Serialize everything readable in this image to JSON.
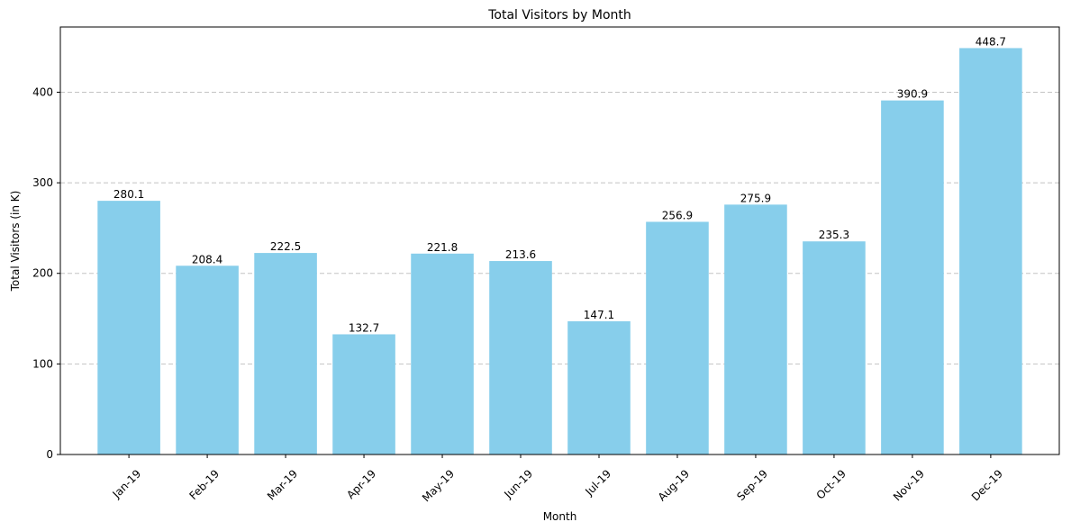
{
  "chart_data": {
    "type": "bar",
    "title": "Total Visitors by Month",
    "xlabel": "Month",
    "ylabel": "Total Visitors (in K)",
    "categories": [
      "Jan-19",
      "Feb-19",
      "Mar-19",
      "Apr-19",
      "May-19",
      "Jun-19",
      "Jul-19",
      "Aug-19",
      "Sep-19",
      "Oct-19",
      "Nov-19",
      "Dec-19"
    ],
    "values": [
      280.1,
      208.4,
      222.5,
      132.7,
      221.8,
      213.6,
      147.1,
      256.9,
      275.9,
      235.3,
      390.9,
      448.7
    ],
    "data_labels": [
      "280.1",
      "208.4",
      "222.5",
      "132.7",
      "221.8",
      "213.6",
      "147.1",
      "256.9",
      "275.9",
      "235.3",
      "390.9",
      "448.7"
    ],
    "ylim": [
      0,
      472
    ],
    "yticks": [
      0,
      100,
      200,
      300,
      400
    ],
    "grid": "y-dashed",
    "bar_color": "#87ceeb"
  }
}
